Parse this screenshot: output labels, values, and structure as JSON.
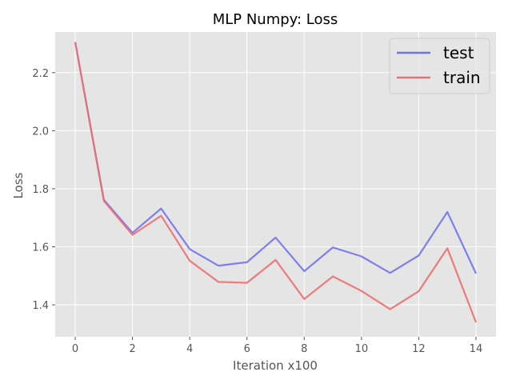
{
  "chart_data": {
    "type": "line",
    "title": "MLP Numpy: Loss",
    "xlabel": "Iteration x100",
    "ylabel": "Loss",
    "x": [
      0,
      1,
      2,
      3,
      4,
      5,
      6,
      7,
      8,
      9,
      10,
      11,
      12,
      13,
      14
    ],
    "xticks": [
      0,
      2,
      4,
      6,
      8,
      10,
      12,
      14
    ],
    "yticks": [
      1.4,
      1.6,
      1.8,
      2.0,
      2.2
    ],
    "ytick_labels": [
      "1.4",
      "1.6",
      "1.8",
      "2.0",
      "2.2"
    ],
    "xlim": [
      -0.7,
      14.7
    ],
    "ylim": [
      1.29,
      2.34
    ],
    "grid": true,
    "legend_position": "top-right",
    "series": [
      {
        "name": "test",
        "color": "#7272ee",
        "values": [
          2.305,
          1.762,
          1.648,
          1.732,
          1.592,
          1.535,
          1.547,
          1.632,
          1.516,
          1.598,
          1.567,
          1.51,
          1.57,
          1.72,
          1.508
        ]
      },
      {
        "name": "train",
        "color": "#ee6e6e",
        "values": [
          2.305,
          1.758,
          1.641,
          1.707,
          1.552,
          1.479,
          1.476,
          1.555,
          1.42,
          1.498,
          1.448,
          1.385,
          1.447,
          1.595,
          1.34
        ]
      }
    ]
  }
}
